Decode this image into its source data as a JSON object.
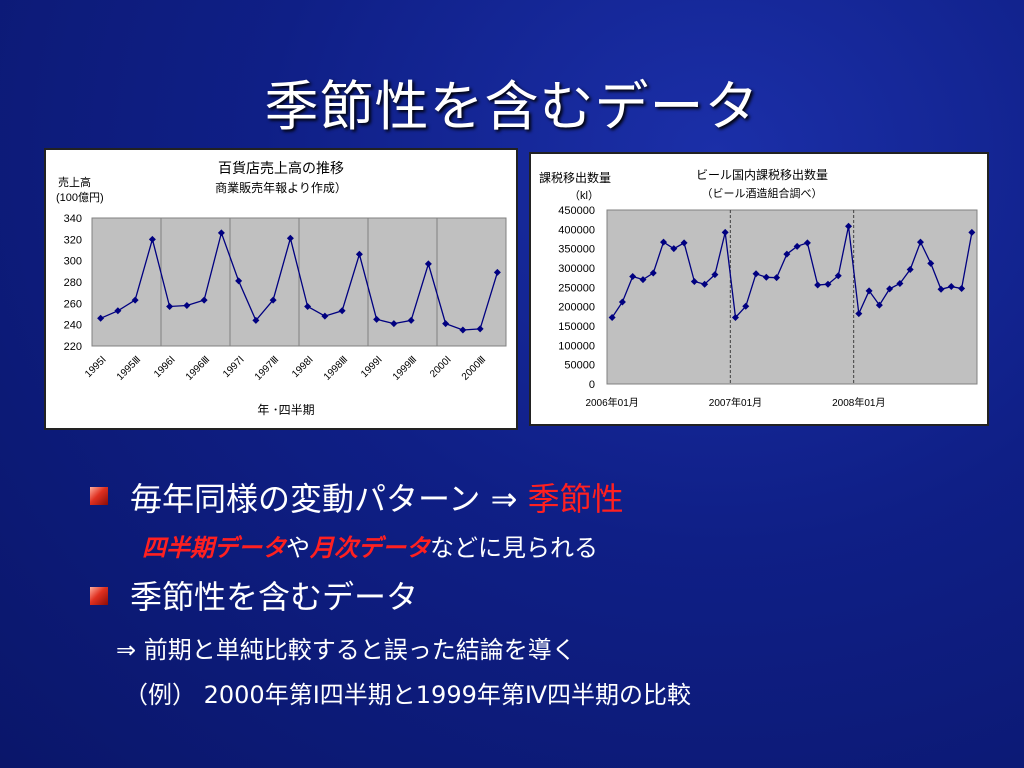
{
  "slide": {
    "title": "季節性を含むデータ",
    "bullet1": {
      "text": "毎年同様の変動パターン ⇒ ",
      "highlight": "季節性"
    },
    "sub1": {
      "part1": "四半期データ",
      "part2": "や",
      "part3": "月次データ",
      "part4": "などに見られる"
    },
    "bullet2": {
      "text": "季節性を含むデータ"
    },
    "sub2": {
      "text": "⇒  前期と単純比較すると誤った結論を導く"
    },
    "sub3": {
      "text": "（例） 2000年第Ⅰ四半期と1999年第Ⅳ四半期の比較"
    },
    "colors": {
      "accent_red": "#ff2020",
      "series_line": "#000080",
      "plot_bg": "#c0c0c0"
    }
  },
  "chart_data": [
    {
      "type": "line",
      "title": "百貨店売上高の推移",
      "subtitle": "商業販売年報より作成）",
      "ylabel": "売上高\n(100億円)",
      "xlabel": "年 ･四半期",
      "ylim": [
        220,
        340
      ],
      "yticks": [
        220,
        240,
        260,
        280,
        300,
        320,
        340
      ],
      "categories": [
        "1995Ⅰ",
        "1995Ⅱ",
        "1995Ⅲ",
        "1995Ⅳ",
        "1996Ⅰ",
        "1996Ⅱ",
        "1996Ⅲ",
        "1996Ⅳ",
        "1997Ⅰ",
        "1997Ⅱ",
        "1997Ⅲ",
        "1997Ⅳ",
        "1998Ⅰ",
        "1998Ⅱ",
        "1998Ⅲ",
        "1998Ⅳ",
        "1999Ⅰ",
        "1999Ⅱ",
        "1999Ⅲ",
        "1999Ⅳ",
        "2000Ⅰ",
        "2000Ⅱ",
        "2000Ⅲ",
        "2000Ⅳ"
      ],
      "tick_labels": [
        "1995Ⅰ",
        "1995Ⅲ",
        "1996Ⅰ",
        "1996Ⅲ",
        "1997Ⅰ",
        "1997Ⅲ",
        "1998Ⅰ",
        "1998Ⅲ",
        "1999Ⅰ",
        "1999Ⅲ",
        "2000Ⅰ",
        "2000Ⅲ"
      ],
      "values": [
        246,
        253,
        263,
        320,
        257,
        258,
        263,
        326,
        281,
        244,
        263,
        321,
        257,
        248,
        253,
        306,
        245,
        241,
        244,
        297,
        241,
        235,
        236,
        289
      ],
      "grid": "vertical lines every 4 quarters"
    },
    {
      "type": "line",
      "title": "ビール国内課税移出数量",
      "subtitle": "（ビール酒造組合調べ）",
      "ylabel": "課税移出数量",
      "yunit": "（kl）",
      "ylim": [
        0,
        450000
      ],
      "yticks": [
        0,
        50000,
        100000,
        150000,
        200000,
        250000,
        300000,
        350000,
        400000,
        450000
      ],
      "tick_labels": [
        "2006年01月",
        "2007年01月",
        "2008年01月"
      ],
      "x": [
        "2006-01",
        "2006-02",
        "2006-03",
        "2006-04",
        "2006-05",
        "2006-06",
        "2006-07",
        "2006-08",
        "2006-09",
        "2006-10",
        "2006-11",
        "2006-12",
        "2007-01",
        "2007-02",
        "2007-03",
        "2007-04",
        "2007-05",
        "2007-06",
        "2007-07",
        "2007-08",
        "2007-09",
        "2007-10",
        "2007-11",
        "2007-12",
        "2008-01",
        "2008-02",
        "2008-03",
        "2008-04",
        "2008-05",
        "2008-06",
        "2008-07",
        "2008-08",
        "2008-09",
        "2008-10",
        "2008-11",
        "2008-12"
      ],
      "values": [
        172000,
        212000,
        278000,
        270000,
        287000,
        367000,
        350000,
        365000,
        265000,
        258000,
        283000,
        392000,
        172000,
        201000,
        285000,
        276000,
        275000,
        336000,
        356000,
        365000,
        256000,
        258000,
        280000,
        408000,
        182000,
        241000,
        204000,
        246000,
        260000,
        296000,
        367000,
        312000,
        245000,
        252000,
        247000,
        392000
      ],
      "grid": "dashed vertical lines at year boundaries"
    }
  ]
}
